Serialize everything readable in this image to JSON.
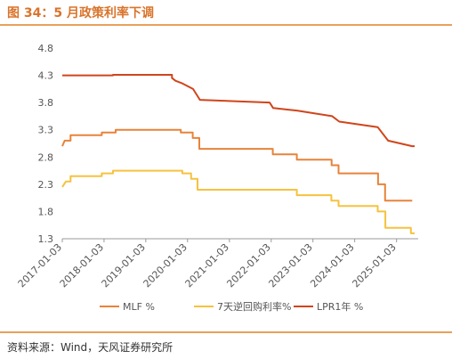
{
  "header": {
    "title": "图 34：5 月政策利率下调"
  },
  "footer": {
    "source": "资料来源：Wind，天风证券研究所"
  },
  "chart_data": {
    "type": "line",
    "title": "",
    "xlabel": "",
    "ylabel": "",
    "ylim": [
      1.3,
      4.8
    ],
    "yticks": [
      "1.3",
      "1.8",
      "2.3",
      "2.8",
      "3.3",
      "3.8",
      "4.3",
      "4.8"
    ],
    "xlim": [
      "2017-01-03",
      "2025-06-10"
    ],
    "xticks": [
      "2017-01-03",
      "2018-01-03",
      "2019-01-03",
      "2020-01-03",
      "2021-01-03",
      "2022-01-03",
      "2023-01-03",
      "2024-01-03",
      "2025-01-03"
    ],
    "grid": false,
    "legend": "bottom",
    "series": [
      {
        "name": "MLF %",
        "color": "#e8833a",
        "points": [
          [
            "2017-01-03",
            3.0
          ],
          [
            "2017-01-24",
            3.1
          ],
          [
            "2017-03-16",
            3.1
          ],
          [
            "2017-03-16",
            3.2
          ],
          [
            "2017-12-14",
            3.2
          ],
          [
            "2017-12-14",
            3.25
          ],
          [
            "2018-04-15",
            3.25
          ],
          [
            "2018-04-15",
            3.3
          ],
          [
            "2019-11-05",
            3.3
          ],
          [
            "2019-11-05",
            3.25
          ],
          [
            "2020-02-17",
            3.25
          ],
          [
            "2020-02-17",
            3.15
          ],
          [
            "2020-04-15",
            3.15
          ],
          [
            "2020-04-15",
            2.95
          ],
          [
            "2022-01-17",
            2.95
          ],
          [
            "2022-01-17",
            2.85
          ],
          [
            "2022-08-15",
            2.85
          ],
          [
            "2022-08-15",
            2.75
          ],
          [
            "2023-06-15",
            2.75
          ],
          [
            "2023-06-15",
            2.65
          ],
          [
            "2023-08-15",
            2.65
          ],
          [
            "2023-08-15",
            2.5
          ],
          [
            "2024-07-25",
            2.5
          ],
          [
            "2024-07-25",
            2.3
          ],
          [
            "2024-09-25",
            2.3
          ],
          [
            "2024-09-25",
            2.0
          ],
          [
            "2025-05-20",
            2.0
          ]
        ]
      },
      {
        "name": "7天逆回购利率%",
        "color": "#f6c23e",
        "points": [
          [
            "2017-01-03",
            2.25
          ],
          [
            "2017-02-03",
            2.35
          ],
          [
            "2017-03-16",
            2.35
          ],
          [
            "2017-03-16",
            2.45
          ],
          [
            "2017-12-14",
            2.45
          ],
          [
            "2017-12-14",
            2.5
          ],
          [
            "2018-03-22",
            2.5
          ],
          [
            "2018-03-22",
            2.55
          ],
          [
            "2019-11-18",
            2.55
          ],
          [
            "2019-11-18",
            2.5
          ],
          [
            "2020-02-03",
            2.5
          ],
          [
            "2020-02-03",
            2.4
          ],
          [
            "2020-03-30",
            2.4
          ],
          [
            "2020-03-30",
            2.2
          ],
          [
            "2022-08-15",
            2.2
          ],
          [
            "2022-08-15",
            2.1
          ],
          [
            "2023-06-13",
            2.1
          ],
          [
            "2023-06-13",
            2.0
          ],
          [
            "2023-08-15",
            2.0
          ],
          [
            "2023-08-15",
            1.9
          ],
          [
            "2024-07-22",
            1.9
          ],
          [
            "2024-07-22",
            1.8
          ],
          [
            "2024-09-27",
            1.8
          ],
          [
            "2024-09-27",
            1.5
          ],
          [
            "2025-05-08",
            1.5
          ],
          [
            "2025-05-08",
            1.4
          ],
          [
            "2025-06-10",
            1.4
          ]
        ]
      },
      {
        "name": "LPR1年 %",
        "color": "#d0451b",
        "points": [
          [
            "2017-01-03",
            4.3
          ],
          [
            "2018-03-22",
            4.3
          ],
          [
            "2018-03-22",
            4.31
          ],
          [
            "2019-08-20",
            4.31
          ],
          [
            "2019-08-20",
            4.25
          ],
          [
            "2019-09-20",
            4.2
          ],
          [
            "2019-11-20",
            4.15
          ],
          [
            "2020-02-20",
            4.05
          ],
          [
            "2020-04-20",
            3.85
          ],
          [
            "2021-12-20",
            3.8
          ],
          [
            "2022-01-20",
            3.7
          ],
          [
            "2022-08-22",
            3.65
          ],
          [
            "2023-06-20",
            3.55
          ],
          [
            "2023-08-21",
            3.45
          ],
          [
            "2024-07-22",
            3.35
          ],
          [
            "2024-10-21",
            3.1
          ],
          [
            "2025-05-20",
            3.0
          ],
          [
            "2025-06-10",
            3.0
          ]
        ]
      }
    ]
  }
}
